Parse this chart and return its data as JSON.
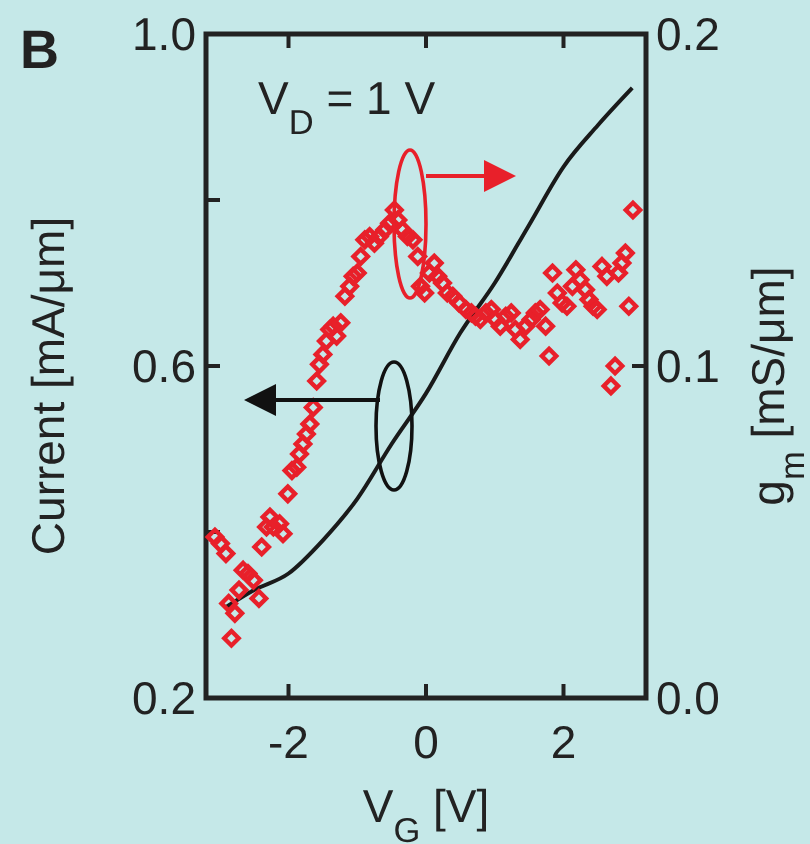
{
  "chart_data": {
    "type": "line",
    "title": "B",
    "xlabel": "V$_{G}$ [V]",
    "ylabel": "Current [mA/μm]",
    "y2label": "g$_{m}$ [mS/μm]",
    "annotations": [
      "V$_{D}$ = 1 V"
    ],
    "xlim": [
      -3.2,
      3.2
    ],
    "xticks": [
      -2,
      0,
      2
    ],
    "ylim": [
      0.2,
      1.0
    ],
    "yticks": [
      0.2,
      {
        "value": 0.4,
        "label": null
      },
      0.6,
      {
        "value": 0.8,
        "label": null
      },
      {
        "value": 1,
        "label": "1.0"
      }
    ],
    "y2lim": [
      0.0,
      0.2
    ],
    "y2ticks": [
      {
        "value": 0.0,
        "label": "0.0"
      },
      0.1,
      0.2
    ],
    "series": [
      {
        "color": "#1a1a1a",
        "marker": "none",
        "x": [
          -2.9,
          -2.5,
          -2,
          -1.5,
          -1,
          -0.5,
          0,
          0.5,
          1,
          1.5,
          2,
          2.5,
          3
        ],
        "values": [
          0.31,
          0.33,
          0.35,
          0.39,
          0.44,
          0.506,
          0.567,
          0.64,
          0.7,
          0.77,
          0.84,
          0.89,
          0.935
        ]
      },
      {
        "type": "scatter",
        "axis": "y2",
        "color": "#e8202a",
        "marker": "diamond",
        "x": [
          -3.07,
          -2.99,
          -2.91,
          -2.87,
          -2.78,
          -2.83,
          -2.72,
          -2.66,
          -2.59,
          -2.51,
          -2.43,
          -2.39,
          -2.32,
          -2.27,
          -2.22,
          -2.13,
          -2.08,
          -2.01,
          -1.95,
          -1.88,
          -1.84,
          -1.79,
          -1.74,
          -1.69,
          -1.64,
          -1.59,
          -1.55,
          -1.5,
          -1.45,
          -1.4,
          -1.35,
          -1.3,
          -1.24,
          -1.18,
          -1.11,
          -1.06,
          -1.0,
          -0.95,
          -0.89,
          -0.82,
          -0.75,
          -0.68,
          -0.6,
          -0.53,
          -0.46,
          -0.41,
          -0.34,
          -0.27,
          -0.19,
          -0.12,
          -0.08,
          -0.02,
          0.05,
          0.12,
          0.17,
          0.24,
          0.31,
          0.39,
          0.48,
          0.58,
          0.66,
          0.72,
          0.79,
          0.87,
          0.95,
          1.01,
          1.08,
          1.16,
          1.24,
          1.3,
          1.37,
          1.45,
          1.53,
          1.59,
          1.66,
          1.74,
          1.79,
          1.84,
          1.91,
          1.98,
          2.05,
          2.13,
          2.18,
          2.24,
          2.32,
          2.37,
          2.43,
          2.49,
          2.56,
          2.63,
          2.69,
          2.75,
          2.8,
          2.85,
          2.9,
          2.95,
          3.01
        ],
        "values": [
          0.0485,
          0.0465,
          0.0435,
          0.0285,
          0.0255,
          0.018,
          0.0325,
          0.0385,
          0.0375,
          0.0355,
          0.03,
          0.0455,
          0.0515,
          0.0545,
          0.0515,
          0.0525,
          0.0495,
          0.0615,
          0.0685,
          0.0695,
          0.0735,
          0.0765,
          0.0795,
          0.0825,
          0.0875,
          0.0955,
          0.1005,
          0.1035,
          0.1075,
          0.111,
          0.112,
          0.109,
          0.113,
          0.121,
          0.124,
          0.127,
          0.128,
          0.133,
          0.138,
          0.139,
          0.137,
          0.139,
          0.141,
          0.143,
          0.147,
          0.144,
          0.141,
          0.139,
          0.138,
          0.133,
          0.124,
          0.122,
          0.128,
          0.131,
          0.127,
          0.125,
          0.122,
          0.121,
          0.119,
          0.117,
          0.116,
          0.115,
          0.114,
          0.116,
          0.117,
          0.114,
          0.112,
          0.115,
          0.116,
          0.111,
          0.108,
          0.112,
          0.114,
          0.116,
          0.117,
          0.112,
          0.103,
          0.128,
          0.122,
          0.119,
          0.118,
          0.124,
          0.129,
          0.126,
          0.123,
          0.12,
          0.118,
          0.117,
          0.13,
          0.127,
          0.094,
          0.1,
          0.128,
          0.131,
          0.134,
          0.118,
          0.147
        ]
      }
    ]
  }
}
